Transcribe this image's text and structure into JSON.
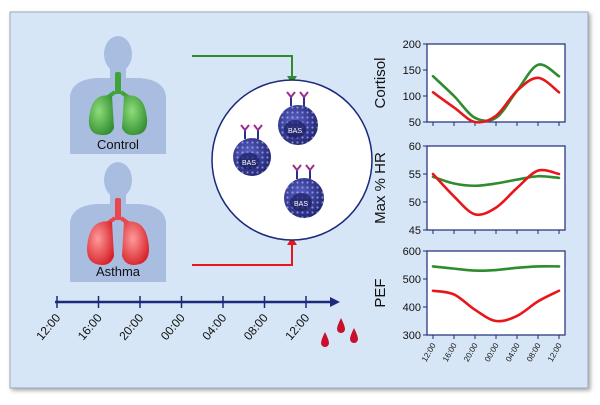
{
  "figure": {
    "labels": {
      "control": "Control",
      "asthma": "Asthma",
      "cell": "BAS"
    },
    "timeline": {
      "ticks": [
        "12:00",
        "16:00",
        "20:00",
        "00:00",
        "04:00",
        "08:00",
        "12:00"
      ]
    },
    "colors": {
      "panel_bg": "#d7e6f6",
      "control": "#2e8b2e",
      "asthma": "#e8151b",
      "axis": "#1b2a7a",
      "silhouette": "#a9bde0",
      "cell": "#2b2f8a",
      "blood": "#c8102e"
    }
  },
  "chart_data": [
    {
      "type": "line",
      "ylabel": "Cortisol",
      "ylim": [
        50,
        200
      ],
      "yticks": [
        50,
        100,
        150,
        200
      ],
      "x": [
        "12:00",
        "16:00",
        "20:00",
        "00:00",
        "04:00",
        "08:00",
        "12:00"
      ],
      "series": [
        {
          "name": "Control",
          "values": [
            138,
            100,
            58,
            58,
            110,
            160,
            138
          ]
        },
        {
          "name": "Asthma",
          "values": [
            107,
            78,
            50,
            62,
            110,
            135,
            107
          ]
        }
      ]
    },
    {
      "type": "line",
      "ylabel": "Max % HR",
      "ylim": [
        45,
        60
      ],
      "yticks": [
        45,
        50,
        55,
        60
      ],
      "x": [
        "12:00",
        "16:00",
        "20:00",
        "00:00",
        "04:00",
        "08:00",
        "12:00"
      ],
      "series": [
        {
          "name": "Control",
          "values": [
            54.5,
            53.3,
            52.9,
            53.3,
            54.0,
            54.6,
            54.3
          ]
        },
        {
          "name": "Asthma",
          "values": [
            55.0,
            51.0,
            47.8,
            49.0,
            52.5,
            55.6,
            55.0
          ]
        }
      ]
    },
    {
      "type": "line",
      "ylabel": "PEF",
      "ylim": [
        300,
        600
      ],
      "yticks": [
        300,
        400,
        500,
        600
      ],
      "x": [
        "12:00",
        "16:00",
        "20:00",
        "00:00",
        "04:00",
        "08:00",
        "12:00"
      ],
      "series": [
        {
          "name": "Control",
          "values": [
            545,
            537,
            530,
            532,
            540,
            545,
            545
          ]
        },
        {
          "name": "Asthma",
          "values": [
            458,
            445,
            390,
            350,
            368,
            420,
            458
          ]
        }
      ]
    }
  ]
}
